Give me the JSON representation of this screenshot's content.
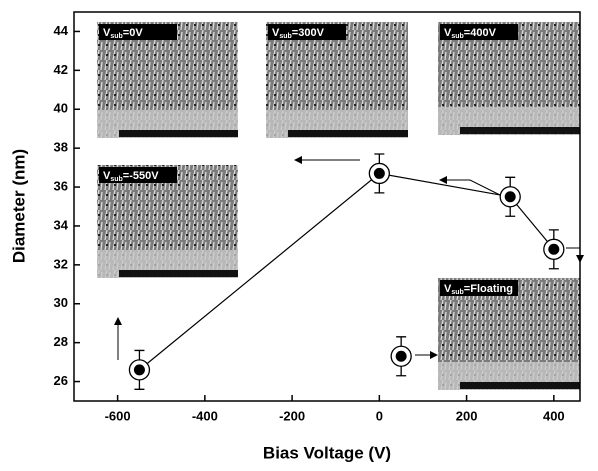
{
  "chart_data": {
    "type": "line",
    "xlabel": "Bias Voltage (V)",
    "ylabel": "Diameter (nm)",
    "xlim": [
      -700,
      460
    ],
    "ylim": [
      25,
      45
    ],
    "xticks": [
      -600,
      -400,
      -200,
      0,
      200,
      400
    ],
    "yticks": [
      26,
      28,
      30,
      32,
      34,
      36,
      38,
      40,
      42,
      44
    ],
    "series": [
      {
        "color": "#000000",
        "connected": true,
        "x": [
          -550,
          0,
          300,
          400
        ],
        "values": [
          26.6,
          36.7,
          35.5,
          32.8
        ],
        "errors": [
          1,
          1,
          1,
          1
        ]
      },
      {
        "color": "#000000",
        "connected": false,
        "x": [
          50
        ],
        "values": [
          27.3
        ],
        "errors": [
          1
        ]
      }
    ],
    "insets": [
      {
        "prefix": "V",
        "sub": "sub",
        "suffix": "=0V"
      },
      {
        "prefix": "V",
        "sub": "sub",
        "suffix": "=300V"
      },
      {
        "prefix": "V",
        "sub": "sub",
        "suffix": "=400V"
      },
      {
        "prefix": "V",
        "sub": "sub",
        "suffix": "=-550V"
      },
      {
        "prefix": "V",
        "sub": "sub",
        "suffix": "=Floating"
      }
    ]
  }
}
